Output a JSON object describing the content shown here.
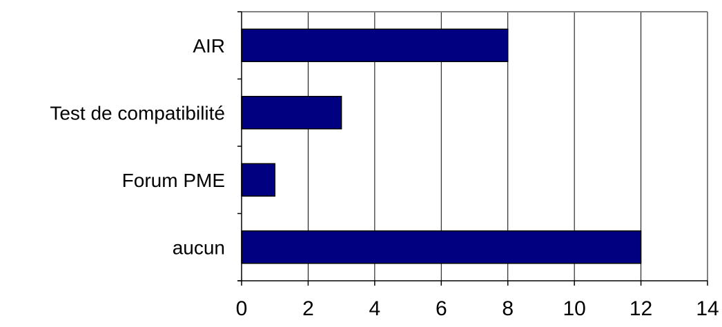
{
  "chart_data": {
    "type": "bar",
    "orientation": "horizontal",
    "categories": [
      "AIR",
      "Test de compatibilité",
      "Forum PME",
      "aucun"
    ],
    "values": [
      8,
      3,
      1,
      12
    ],
    "xlim": [
      0,
      14
    ],
    "xticks": [
      "0",
      "2",
      "4",
      "6",
      "8",
      "10",
      "12",
      "14"
    ],
    "grid": "vertical",
    "legend": "none",
    "bar_color": "#000080"
  }
}
